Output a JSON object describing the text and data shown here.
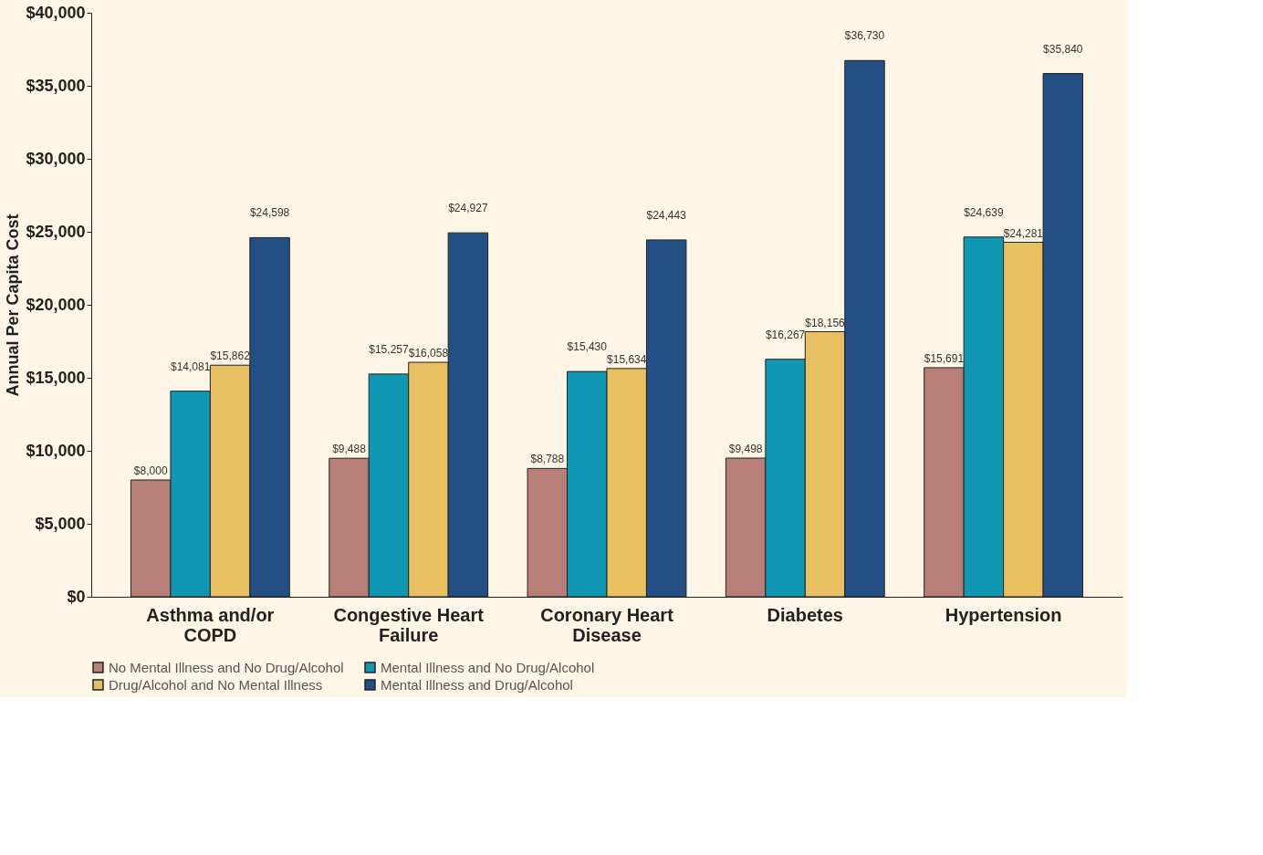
{
  "chart_data": {
    "type": "bar",
    "ylabel": "Annual Per Capita Cost",
    "categories": [
      "Asthma and/or COPD",
      "Congestive Heart Failure",
      "Coronary Heart Disease",
      "Diabetes",
      "Hypertension"
    ],
    "series": [
      {
        "name": "No Mental Illness and No Drug/Alcohol",
        "color": "#b87f78",
        "values": [
          8000,
          9488,
          8788,
          9498,
          15691
        ],
        "value_labels": [
          "$8,000",
          "$9,488",
          "$8,788",
          "$9,498",
          "$15,691"
        ]
      },
      {
        "name": "Mental Illness and No Drug/Alcohol",
        "color": "#0f97b4",
        "values": [
          14081,
          15257,
          15430,
          16267,
          24639
        ],
        "value_labels": [
          "$14,081",
          "$15,257",
          "$15,430",
          "$16,267",
          "$24,639"
        ]
      },
      {
        "name": "Drug/Alcohol and No Mental Illness",
        "color": "#e8c062",
        "values": [
          15862,
          16058,
          15634,
          18156,
          24281
        ],
        "value_labels": [
          "$15,862",
          "$16,058",
          "$15,634",
          "$18,156",
          "$24,281"
        ]
      },
      {
        "name": "Mental Illness and Drug/Alcohol",
        "color": "#234f84",
        "values": [
          24598,
          24927,
          24443,
          36730,
          35840
        ],
        "value_labels": [
          "$24,598",
          "$24,927",
          "$24,443",
          "$36,730",
          "$35,840"
        ]
      }
    ],
    "ylim": [
      0,
      40000
    ],
    "yticks": [
      {
        "value": 0,
        "label": "$0"
      },
      {
        "value": 5000,
        "label": "$5,000"
      },
      {
        "value": 10000,
        "label": "$10,000"
      },
      {
        "value": 15000,
        "label": "$15,000"
      },
      {
        "value": 20000,
        "label": "$20,000"
      },
      {
        "value": 25000,
        "label": "$25,000"
      },
      {
        "value": 30000,
        "label": "$30,000"
      },
      {
        "value": 35000,
        "label": "$35,000"
      },
      {
        "value": 40000,
        "label": "$40,000"
      }
    ],
    "grid": false,
    "legend": "bottom"
  }
}
